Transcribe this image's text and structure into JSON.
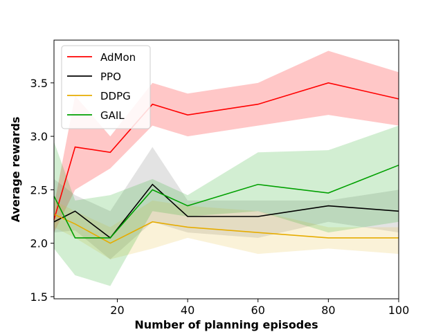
{
  "chart_data": {
    "type": "line",
    "xlabel": "Number of planning episodes",
    "ylabel": "Average rewards",
    "xlim": [
      2,
      100
    ],
    "ylim": [
      1.48,
      3.9
    ],
    "xticks": [
      20,
      40,
      60,
      80,
      100
    ],
    "yticks": [
      1.5,
      2.0,
      2.5,
      3.0,
      3.5
    ],
    "xtick_labels": [
      "20",
      "40",
      "60",
      "80",
      "100"
    ],
    "ytick_labels": [
      "1.5",
      "2.0",
      "2.5",
      "3.0",
      "3.5"
    ],
    "grid": false,
    "legend_position": "top-left",
    "x": [
      2,
      8,
      18,
      30,
      40,
      60,
      80,
      100
    ],
    "series": [
      {
        "name": "AdMon",
        "color": "#ff0000",
        "band_color": "#ff0000",
        "values": [
          2.22,
          2.9,
          2.85,
          3.3,
          3.2,
          3.3,
          3.5,
          3.35
        ],
        "lower": [
          2.1,
          2.5,
          2.7,
          3.1,
          3.0,
          3.1,
          3.2,
          3.1
        ],
        "upper": [
          2.35,
          3.38,
          3.0,
          3.5,
          3.4,
          3.5,
          3.8,
          3.6
        ]
      },
      {
        "name": "PPO",
        "color": "#000000",
        "band_color": "#808080",
        "values": [
          2.2,
          2.3,
          2.05,
          2.55,
          2.25,
          2.25,
          2.35,
          2.3
        ],
        "lower": [
          2.1,
          2.12,
          1.85,
          2.2,
          2.1,
          2.05,
          2.2,
          2.1
        ],
        "upper": [
          2.6,
          2.45,
          2.3,
          2.9,
          2.4,
          2.4,
          2.4,
          2.5
        ]
      },
      {
        "name": "DDPG",
        "color": "#e6ac00",
        "band_color": "#e6c24d",
        "values": [
          2.27,
          2.18,
          2.0,
          2.2,
          2.15,
          2.1,
          2.05,
          2.05
        ],
        "lower": [
          2.15,
          2.05,
          1.85,
          1.95,
          2.05,
          1.9,
          1.95,
          1.9
        ],
        "upper": [
          2.4,
          2.3,
          2.15,
          2.4,
          2.35,
          2.3,
          2.15,
          2.15
        ]
      },
      {
        "name": "GAIL",
        "color": "#00a000",
        "band_color": "#33b033",
        "values": [
          2.44,
          2.05,
          2.05,
          2.5,
          2.35,
          2.55,
          2.47,
          2.73
        ],
        "lower": [
          1.95,
          1.7,
          1.6,
          2.3,
          2.25,
          2.3,
          2.1,
          2.2
        ],
        "upper": [
          2.95,
          2.4,
          2.45,
          2.6,
          2.45,
          2.85,
          2.87,
          3.1
        ]
      }
    ]
  }
}
